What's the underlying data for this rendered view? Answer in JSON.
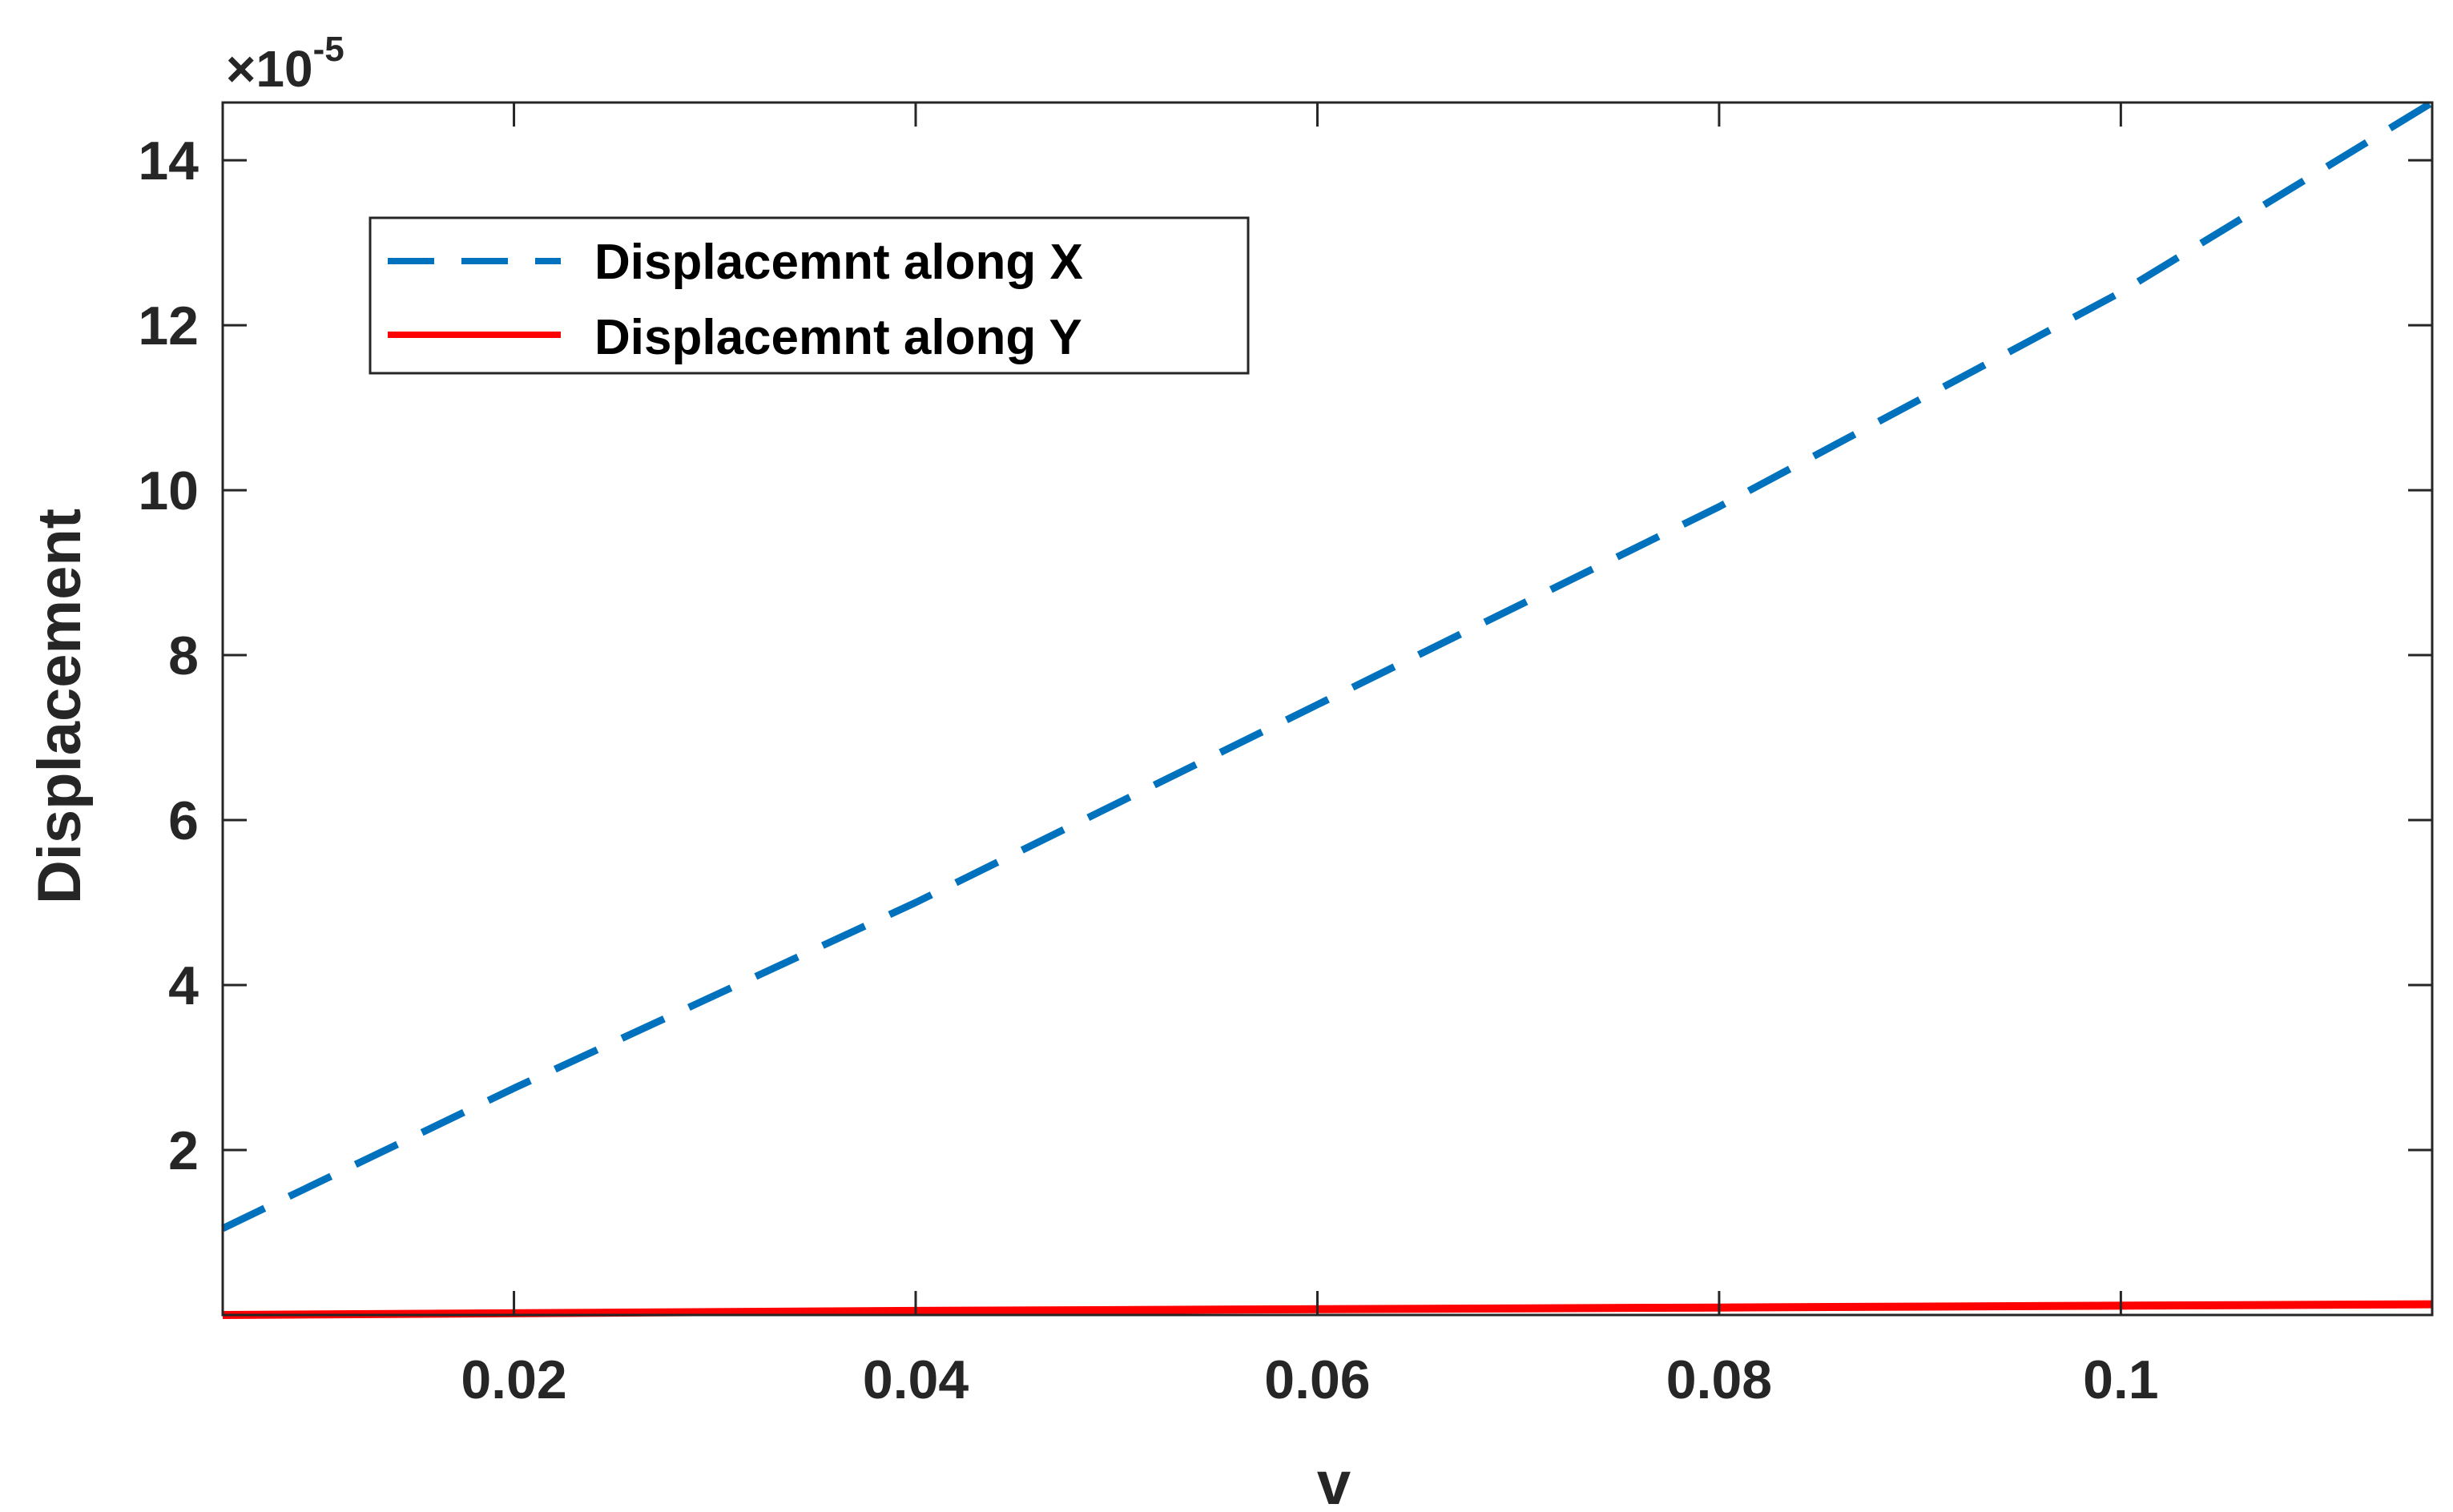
{
  "chart_data": {
    "type": "line",
    "title": "",
    "xlabel": "v",
    "ylabel": "Displacement",
    "y_exponent_label": "×10",
    "y_exponent_power": "-5",
    "xlim": [
      0.0055,
      0.1155
    ],
    "ylim": [
      0,
      14.7
    ],
    "x_ticks": [
      0.02,
      0.04,
      0.06,
      0.08,
      0.1
    ],
    "x_tick_labels": [
      "0.02",
      "0.04",
      "0.06",
      "0.08",
      "0.1"
    ],
    "y_ticks": [
      2,
      4,
      6,
      8,
      10,
      12,
      14
    ],
    "y_tick_labels": [
      "2",
      "4",
      "6",
      "8",
      "10",
      "12",
      "14"
    ],
    "grid": false,
    "legend_position": "top-left",
    "series": [
      {
        "name": "Displacemnt along X",
        "color": "#0072BD",
        "style": "dashed",
        "x": [
          0.0055,
          0.02,
          0.04,
          0.06,
          0.08,
          0.1,
          0.1155
        ],
        "y": [
          1.05,
          2.75,
          5.0,
          7.4,
          9.8,
          12.4,
          14.7
        ]
      },
      {
        "name": "Displacemnt along Y",
        "color": "#FF0000",
        "style": "solid",
        "x": [
          0.0055,
          0.04,
          0.08,
          0.1155
        ],
        "y": [
          0.0,
          0.05,
          0.09,
          0.13
        ]
      }
    ]
  }
}
